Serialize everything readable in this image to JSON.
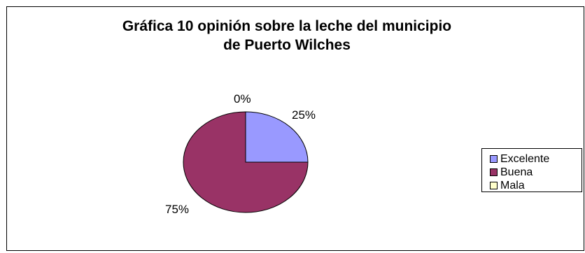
{
  "chart_data": {
    "type": "pie",
    "title_lines": [
      "Gráfica 10 opinión sobre la leche del municipio",
      "de Puerto Wilches"
    ],
    "categories": [
      "Excelente",
      "Buena",
      "Mala"
    ],
    "values": [
      25,
      75,
      0
    ],
    "labels": [
      "25%",
      "75%",
      "0%"
    ],
    "colors": [
      "#9999FF",
      "#993366",
      "#FFFFCC"
    ],
    "start_angle_deg": 0,
    "direction": "clockwise",
    "legend_position": "right"
  }
}
